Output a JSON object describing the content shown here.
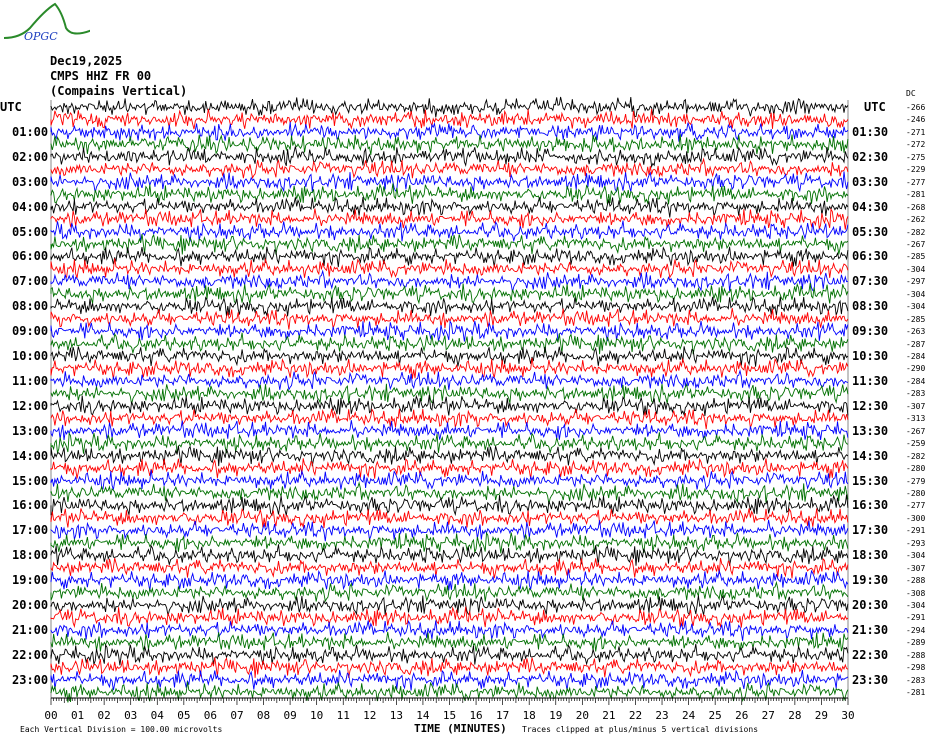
{
  "logo": "OPGC",
  "header": {
    "date": "Dec19,2025",
    "station": "CMPS HHZ FR 00",
    "location": "(Compains Vertical)"
  },
  "left_tz": "UTC",
  "right_tz": "UTC",
  "dc_label": "DC",
  "colors": [
    "#000000",
    "#ff0000",
    "#0000ff",
    "#007000"
  ],
  "footer": {
    "scale": "Each Vertical Division =  100.00 microvolts",
    "xlabel": "TIME (MINUTES)",
    "clip": "Traces clipped at plus/minus 5 vertical divisions"
  },
  "chart_data": {
    "type": "line",
    "xlabel": "TIME (MINUTES)",
    "xlim": [
      0,
      30
    ],
    "x_ticks": [
      "00",
      "01",
      "02",
      "03",
      "04",
      "05",
      "06",
      "07",
      "08",
      "09",
      "10",
      "11",
      "12",
      "13",
      "14",
      "15",
      "16",
      "17",
      "18",
      "19",
      "20",
      "21",
      "22",
      "23",
      "24",
      "25",
      "26",
      "27",
      "28",
      "29",
      "30"
    ],
    "left_labels": [
      "01:00",
      "02:00",
      "03:00",
      "04:00",
      "05:00",
      "06:00",
      "07:00",
      "08:00",
      "09:00",
      "10:00",
      "11:00",
      "12:00",
      "13:00",
      "14:00",
      "15:00",
      "16:00",
      "17:00",
      "18:00",
      "19:00",
      "20:00",
      "21:00",
      "22:00",
      "23:00"
    ],
    "right_labels": [
      "01:30",
      "02:30",
      "03:30",
      "04:30",
      "05:30",
      "06:30",
      "07:30",
      "08:30",
      "09:30",
      "10:30",
      "11:30",
      "12:30",
      "13:30",
      "14:30",
      "15:30",
      "16:30",
      "17:30",
      "18:30",
      "19:30",
      "20:30",
      "21:30",
      "22:30",
      "23:30"
    ],
    "dc_offsets": [
      -266,
      -246,
      -271,
      -272,
      -275,
      -229,
      -277,
      -281,
      -268,
      -262,
      -282,
      -267,
      -285,
      -304,
      -297,
      -304,
      -304,
      -285,
      -263,
      -287,
      -284,
      -290,
      -284,
      -283,
      -307,
      -313,
      -267,
      -259,
      -282,
      -280,
      -279,
      -280,
      -277,
      -300,
      -291,
      -293,
      -304,
      -307,
      -288,
      -308,
      -304,
      -291,
      -294,
      -289,
      -288,
      -298,
      -283,
      -281
    ],
    "trace_count": 48
  }
}
